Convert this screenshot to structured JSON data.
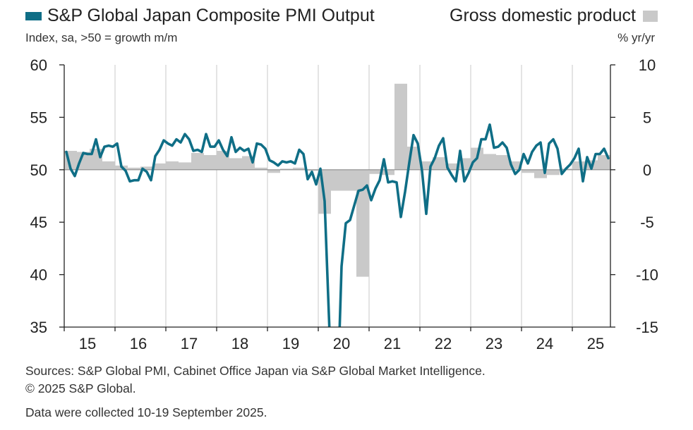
{
  "chart_data": {
    "type": "line",
    "title": "",
    "legend": {
      "left_label": "S&P Global Japan Composite PMI Output",
      "right_label": "Gross domestic product",
      "placement": "top"
    },
    "left_axis": {
      "label": "Index, sa, >50 = growth m/m",
      "ylim": [
        35,
        60
      ],
      "ticks": [
        "60",
        "55",
        "50",
        "45",
        "40",
        "35"
      ]
    },
    "right_axis": {
      "label": "% yr/yr",
      "ylim": [
        -15,
        10
      ],
      "ticks": [
        "10",
        "5",
        "0",
        "-5",
        "-10",
        "-15"
      ]
    },
    "x_ticks": [
      "15",
      "16",
      "17",
      "18",
      "19",
      "20",
      "21",
      "22",
      "23",
      "24",
      "25"
    ],
    "x_range": [
      "2015-01",
      "2025-08"
    ],
    "grid": "vertical",
    "colors": {
      "pmi_line": "#0f6e86",
      "gdp_bars": "#c9c9c9",
      "axis": "#222222",
      "grid": "#c8c8c8"
    },
    "series": [
      {
        "name": "S&P Global Japan Composite PMI Output",
        "type": "line",
        "axis": "left",
        "start": "2015-01",
        "values": [
          51.7,
          50.1,
          49.4,
          50.6,
          51.6,
          51.5,
          51.5,
          52.9,
          51.2,
          52.2,
          52.3,
          52.2,
          52.5,
          50.3,
          49.9,
          48.9,
          49.0,
          49.0,
          50.1,
          49.8,
          49.0,
          51.3,
          51.9,
          52.8,
          52.5,
          52.3,
          52.9,
          52.6,
          53.4,
          52.9,
          51.8,
          51.9,
          51.7,
          53.4,
          52.2,
          52.2,
          52.8,
          51.9,
          51.3,
          53.1,
          51.7,
          52.1,
          51.8,
          52.0,
          50.7,
          52.5,
          52.4,
          52.0,
          50.9,
          50.7,
          50.4,
          50.8,
          50.7,
          50.8,
          50.6,
          51.9,
          51.5,
          49.1,
          49.8,
          48.6,
          50.1,
          47.0,
          36.2,
          25.8,
          27.8,
          40.8,
          44.9,
          45.2,
          46.6,
          48.0,
          48.1,
          48.5,
          47.1,
          48.2,
          49.0,
          51.0,
          48.8,
          48.9,
          48.8,
          45.5,
          47.9,
          50.7,
          53.3,
          52.5,
          49.9,
          45.8,
          50.3,
          51.1,
          52.3,
          53.0,
          50.2,
          49.5,
          48.9,
          51.8,
          48.9,
          49.7,
          50.7,
          51.1,
          52.9,
          52.9,
          54.3,
          52.1,
          52.2,
          52.6,
          52.1,
          50.5,
          49.6,
          50.0,
          51.5,
          50.6,
          51.7,
          52.3,
          52.6,
          49.7,
          52.5,
          52.9,
          52.0,
          49.6,
          50.1,
          50.5,
          51.1,
          52.0,
          48.9,
          51.2,
          50.1,
          51.5,
          51.5,
          52.0,
          51.1
        ]
      },
      {
        "name": "Gross domestic product",
        "type": "bar",
        "axis": "right",
        "frequency": "quarterly",
        "start": "2015-Q1",
        "values": [
          1.8,
          1.7,
          2.0,
          0.8,
          0.4,
          0.2,
          0.3,
          0.6,
          0.8,
          0.7,
          1.6,
          1.4,
          1.8,
          1.1,
          1.3,
          0.2,
          -0.3,
          0.1,
          0.2,
          -0.1,
          -4.2,
          -2.0,
          -2.0,
          -10.2,
          -0.4,
          -0.5,
          8.2,
          2.2,
          0.8,
          1.2,
          0.6,
          1.1,
          2.1,
          1.5,
          1.4,
          0.8,
          -0.3,
          -0.8,
          -0.5,
          0.1,
          0.8,
          0.9,
          1.4,
          1.5,
          1.7,
          1.0
        ]
      }
    ]
  },
  "footer": {
    "sources": "Sources: S&P Global PMI, Cabinet Office Japan via S&P Global Market Intelligence.",
    "copyright": "© 2025 S&P Global.",
    "collected": "Data were collected 10-19 September 2025."
  }
}
